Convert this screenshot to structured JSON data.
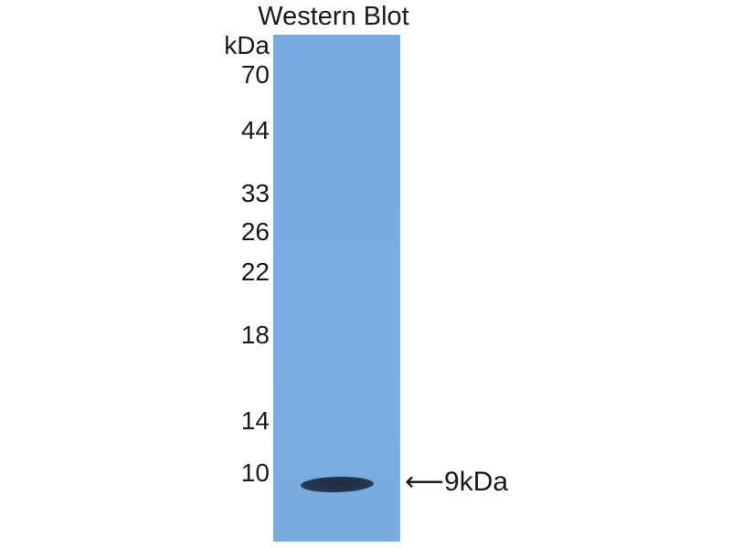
{
  "title": "Western Blot",
  "unit_label": "kDa",
  "markers": [
    "70",
    "44",
    "33",
    "26",
    "22",
    "18",
    "14",
    "10"
  ],
  "band_label": "⟵9kDa",
  "colors": {
    "membrane": "#79ade1",
    "band": "#22324a",
    "text": "#1a1a1a"
  }
}
